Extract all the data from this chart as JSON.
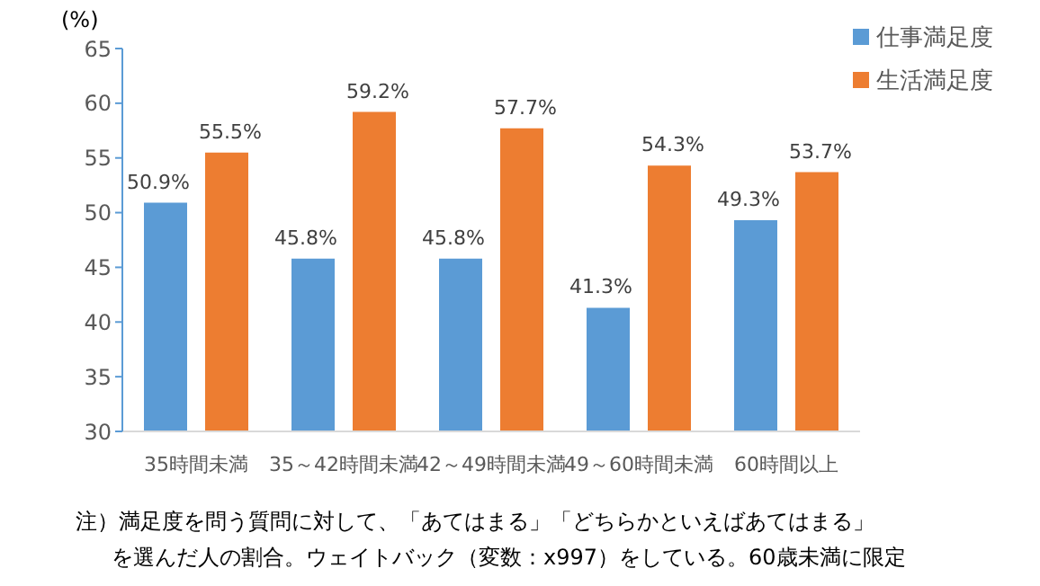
{
  "chart_data": {
    "type": "bar",
    "ylabel": "(%)",
    "categories": [
      "35時間未満",
      "35～42時間未満",
      "42～49時間未満",
      "49～60時間未満",
      "60時間以上"
    ],
    "series": [
      {
        "name": "仕事満足度",
        "color": "#5b9bd5",
        "values": [
          50.9,
          45.8,
          45.8,
          41.3,
          49.3
        ],
        "value_labels": [
          "50.9%",
          "45.8%",
          "45.8%",
          "41.3%",
          "49.3%"
        ]
      },
      {
        "name": "生活満足度",
        "color": "#ed7d31",
        "values": [
          55.5,
          59.2,
          57.7,
          54.3,
          53.7
        ],
        "value_labels": [
          "55.5%",
          "59.2%",
          "57.7%",
          "54.3%",
          "53.7%"
        ]
      }
    ],
    "ylim": [
      30,
      65
    ],
    "yticks": [
      30,
      35,
      40,
      45,
      50,
      55,
      60,
      65
    ],
    "grid": false,
    "legend": "top right",
    "annotations": [
      "注）満足度を問う質問に対して、「あてはまる」「どちらかといえばあてはまる」",
      "を選んだ人の割合。ウェイトバック（変数：x997）をしている。60歳未満に限定"
    ]
  }
}
